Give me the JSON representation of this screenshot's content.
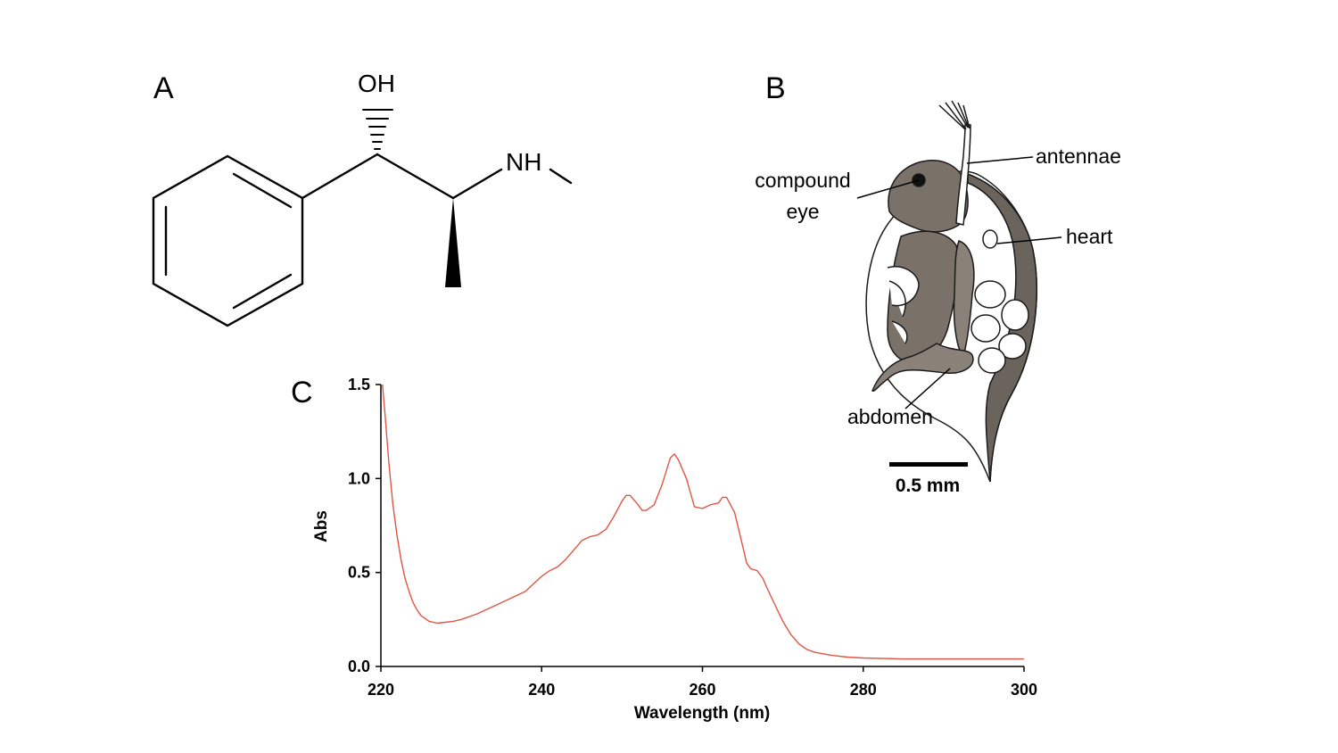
{
  "panels": {
    "a": {
      "letter": "A"
    },
    "b": {
      "letter": "B"
    },
    "c": {
      "letter": "C"
    }
  },
  "molecule": {
    "hydroxyl_label": "OH",
    "amine_label": "NH"
  },
  "organism": {
    "callouts": {
      "antennae": "antennae",
      "eye_line1": "compound",
      "eye_line2": "eye",
      "heart": "heart",
      "abdomen": "abdomen"
    },
    "scale_bar_label": "0.5 mm"
  },
  "chart_data": {
    "type": "line",
    "title": "",
    "xlabel": "Wavelength (nm)",
    "ylabel": "Abs",
    "xlim": [
      220,
      300
    ],
    "ylim": [
      0,
      1.5
    ],
    "x_ticks": [
      220,
      240,
      260,
      280,
      300
    ],
    "x_tick_labels": [
      "220",
      "240",
      "260",
      "280",
      "300"
    ],
    "y_ticks": [
      0,
      0.5,
      1.0,
      1.5
    ],
    "y_tick_labels": [
      "0.0",
      "0.5",
      "1.0",
      "1.5"
    ],
    "grid": false,
    "series": [
      {
        "color": "#e05545",
        "x": [
          220.2,
          220.5,
          221,
          221.5,
          222,
          222.5,
          223,
          223.5,
          224,
          224.5,
          225,
          226,
          227,
          228,
          229,
          230,
          232,
          234,
          236,
          238,
          239,
          240,
          241,
          242,
          243,
          244,
          245,
          246,
          247,
          248,
          249,
          250,
          250.5,
          251,
          252,
          252.5,
          253,
          254,
          255,
          256,
          256.5,
          257,
          258,
          259,
          260,
          261,
          262,
          262.5,
          263,
          264,
          264.5,
          265,
          265.5,
          266,
          266.8,
          267.5,
          268,
          269,
          270,
          271,
          272,
          273,
          274,
          276,
          278,
          280,
          285,
          290,
          300
        ],
        "y": [
          1.5,
          1.35,
          1.08,
          0.86,
          0.7,
          0.57,
          0.47,
          0.4,
          0.34,
          0.3,
          0.27,
          0.24,
          0.23,
          0.235,
          0.24,
          0.25,
          0.28,
          0.32,
          0.36,
          0.4,
          0.44,
          0.48,
          0.51,
          0.53,
          0.57,
          0.62,
          0.67,
          0.69,
          0.7,
          0.73,
          0.8,
          0.88,
          0.91,
          0.91,
          0.86,
          0.83,
          0.83,
          0.86,
          0.97,
          1.11,
          1.13,
          1.1,
          1.0,
          0.85,
          0.84,
          0.86,
          0.87,
          0.9,
          0.9,
          0.82,
          0.73,
          0.64,
          0.55,
          0.52,
          0.51,
          0.47,
          0.42,
          0.33,
          0.24,
          0.17,
          0.12,
          0.09,
          0.075,
          0.06,
          0.05,
          0.045,
          0.04,
          0.04,
          0.04
        ]
      }
    ]
  }
}
